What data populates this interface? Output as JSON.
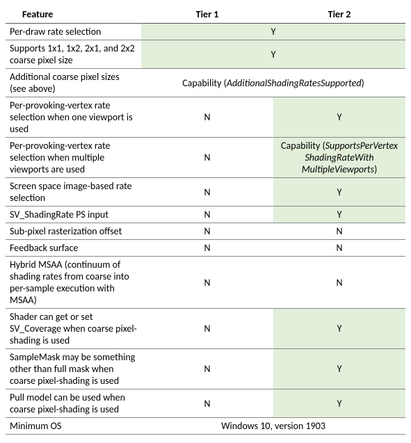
{
  "table": {
    "headers": {
      "feature": "Feature",
      "tier1": "Tier 1",
      "tier2": "Tier 2"
    },
    "colors": {
      "yes_bg": "#e2efda",
      "border": "#888888",
      "header_border": "#555555"
    },
    "rows": [
      {
        "feature": "Per-draw rate selection",
        "merged": true,
        "text": "Y",
        "yes": true
      },
      {
        "feature": "Supports 1x1, 1x2, 2x1, and 2x2 coarse pixel size",
        "merged": true,
        "text": "Y",
        "yes": true
      },
      {
        "feature": "Additional coarse pixel sizes (see above)",
        "merged": true,
        "cap_prefix": "Capability (",
        "cap_ital": "AdditionalShadingRatesSupported",
        "cap_suffix": ")",
        "yes": false
      },
      {
        "feature": "Per-provoking-vertex rate selection when one viewport is used",
        "t1": "N",
        "t2": "Y",
        "t1yes": false,
        "t2yes": true
      },
      {
        "feature": "Per-provoking-vertex rate selection when multiple viewports are used",
        "t1": "N",
        "t1yes": false,
        "t2yes": true,
        "t2cap_prefix": "Capability (",
        "t2cap_ital_l1": "SupportsPerVertex",
        "t2cap_ital_l2": "ShadingRateWith",
        "t2cap_ital_l3": "MultipleViewports",
        "t2cap_suffix": ")"
      },
      {
        "feature": "Screen space image-based rate selection",
        "t1": "N",
        "t2": "Y",
        "t1yes": false,
        "t2yes": true
      },
      {
        "feature": "SV_ShadingRate PS input",
        "t1": "N",
        "t2": "Y",
        "t1yes": false,
        "t2yes": true
      },
      {
        "feature": "Sub-pixel rasterization offset",
        "t1": "N",
        "t2": "N",
        "t1yes": false,
        "t2yes": false
      },
      {
        "feature": "Feedback surface",
        "t1": "N",
        "t2": "N",
        "t1yes": false,
        "t2yes": false
      },
      {
        "feature": "Hybrid MSAA (continuum of shading rates from coarse into per-sample execution with MSAA)",
        "t1": "N",
        "t2": "N",
        "t1yes": false,
        "t2yes": false
      },
      {
        "feature": "Shader can get or set SV_Coverage when coarse pixel-shading is used",
        "t1": "N",
        "t2": "Y",
        "t1yes": false,
        "t2yes": true
      },
      {
        "feature": "SampleMask may be something other than full mask when coarse pixel-shading is used",
        "t1": "N",
        "t2": "Y",
        "t1yes": false,
        "t2yes": true
      },
      {
        "feature": "Pull model can be used when coarse pixel-shading is used",
        "t1": "N",
        "t2": "Y",
        "t1yes": false,
        "t2yes": true
      },
      {
        "feature": "Minimum OS",
        "merged": true,
        "text": "Windows 10, version 1903",
        "yes": false
      }
    ]
  }
}
